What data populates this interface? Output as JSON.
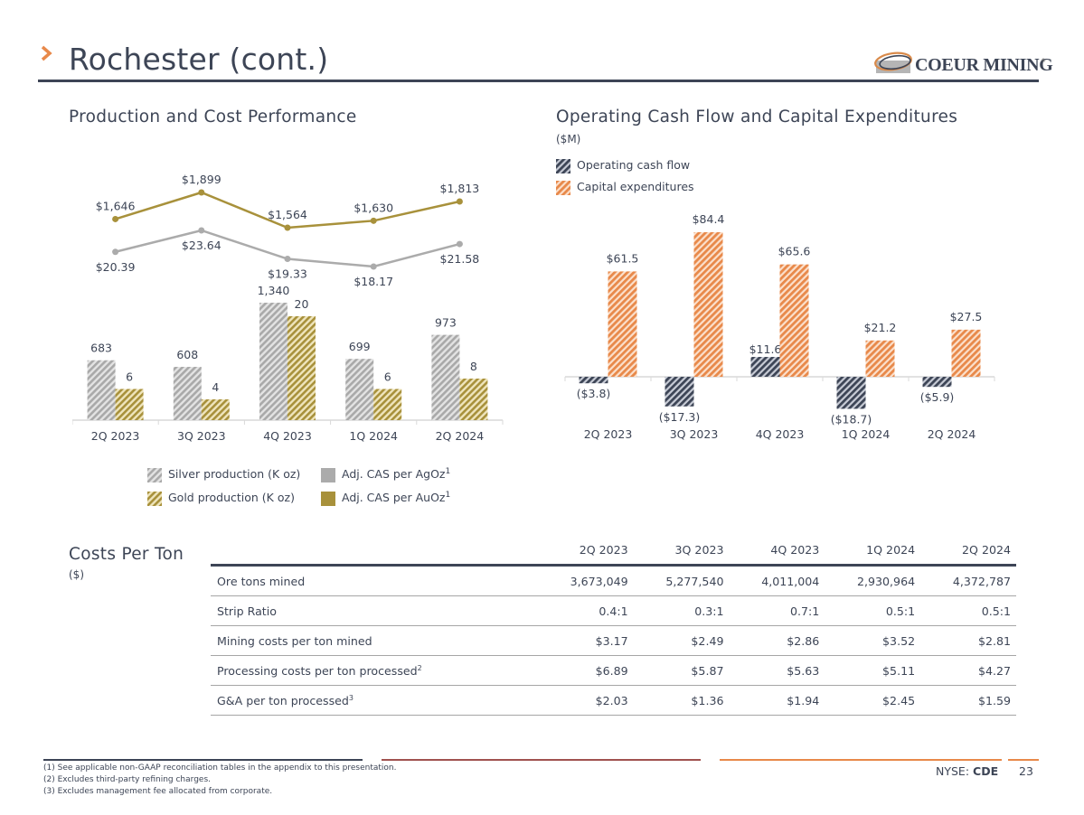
{
  "header": {
    "title": "Rochester (cont.)",
    "logo_text": "COEUR MINING",
    "logo_reg": "®"
  },
  "colors": {
    "navy": "#3d4556",
    "orange": "#e8894a",
    "gold": "#a8913b",
    "silver": "#ababab",
    "maroon": "#a0524f"
  },
  "production_section": {
    "title": "Production and Cost Performance",
    "legend": [
      {
        "label": "Silver production (K oz)",
        "sup": ""
      },
      {
        "label": "Gold production (K oz)",
        "sup": ""
      },
      {
        "label": "Adj. CAS per AgOz",
        "sup": "1"
      },
      {
        "label": "Adj. CAS per AuOz",
        "sup": "1"
      }
    ]
  },
  "cashflow_section": {
    "title": "Operating Cash Flow and Capital Expenditures",
    "subtitle": "($M)",
    "legend": [
      {
        "label": "Operating cash flow"
      },
      {
        "label": "Capital expenditures"
      }
    ]
  },
  "chart_data": [
    {
      "type": "bar",
      "title": "Production and Cost Performance",
      "categories": [
        "2Q 2023",
        "3Q 2023",
        "4Q 2023",
        "1Q 2024",
        "2Q 2024"
      ],
      "series": [
        {
          "name": "Silver production (K oz)",
          "kind": "bar",
          "values": [
            683,
            608,
            1340,
            699,
            973
          ],
          "labels": [
            "683",
            "608",
            "1,340",
            "699",
            "973"
          ]
        },
        {
          "name": "Gold production (K oz)",
          "kind": "bar",
          "values": [
            6,
            4,
            20,
            6,
            8
          ],
          "labels": [
            "6",
            "4",
            "20",
            "6",
            "8"
          ]
        },
        {
          "name": "Adj. CAS per AgOz",
          "kind": "line",
          "values": [
            20.39,
            23.64,
            19.33,
            18.17,
            21.58
          ],
          "labels": [
            "$20.39",
            "$23.64",
            "$19.33",
            "$18.17",
            "$21.58"
          ]
        },
        {
          "name": "Adj. CAS per AuOz",
          "kind": "line",
          "values": [
            1646,
            1899,
            1564,
            1630,
            1813
          ],
          "labels": [
            "$1,646",
            "$1,899",
            "$1,564",
            "$1,630",
            "$1,813"
          ]
        }
      ],
      "silver_ylim": [
        0,
        1500
      ],
      "gold_ylim": [
        0,
        23
      ],
      "legend_position": "bottom",
      "grid": false
    },
    {
      "type": "bar",
      "title": "Operating Cash Flow and Capital Expenditures",
      "subtitle": "($M)",
      "categories": [
        "2Q 2023",
        "3Q 2023",
        "4Q 2023",
        "1Q 2024",
        "2Q 2024"
      ],
      "series": [
        {
          "name": "Operating cash flow",
          "values": [
            -3.8,
            -17.3,
            11.6,
            -18.7,
            -5.9
          ],
          "labels": [
            "($3.8)",
            "($17.3)",
            "$11.6",
            "($18.7)",
            "($5.9)"
          ]
        },
        {
          "name": "Capital expenditures",
          "values": [
            61.5,
            84.4,
            65.6,
            21.2,
            27.5
          ],
          "labels": [
            "$61.5",
            "$84.4",
            "$65.6",
            "$21.2",
            "$27.5"
          ]
        }
      ],
      "ylim": [
        -20,
        90
      ],
      "legend_position": "top-left",
      "grid": false
    },
    {
      "type": "table",
      "title": "Costs Per Ton",
      "subtitle": "($)",
      "columns": [
        "2Q 2023",
        "3Q 2023",
        "4Q 2023",
        "1Q 2024",
        "2Q 2024"
      ],
      "rows": [
        {
          "label": "Ore tons mined",
          "sup": "",
          "values": [
            "3,673,049",
            "5,277,540",
            "4,011,004",
            "2,930,964",
            "4,372,787"
          ]
        },
        {
          "label": "Strip Ratio",
          "sup": "",
          "values": [
            "0.4:1",
            "0.3:1",
            "0.7:1",
            "0.5:1",
            "0.5:1"
          ]
        },
        {
          "label": "Mining costs per ton mined",
          "sup": "",
          "values": [
            "$3.17",
            "$2.49",
            "$2.86",
            "$3.52",
            "$2.81"
          ]
        },
        {
          "label": "Processing costs per ton processed",
          "sup": "2",
          "values": [
            "$6.89",
            "$5.87",
            "$5.63",
            "$5.11",
            "$4.27"
          ]
        },
        {
          "label": "G&A per ton processed",
          "sup": "3",
          "values": [
            "$2.03",
            "$1.36",
            "$1.94",
            "$2.45",
            "$1.59"
          ]
        }
      ]
    }
  ],
  "footnotes": [
    "(1) See applicable non-GAAP reconciliation tables in the appendix to this presentation.",
    "(2) Excludes third-party refining charges.",
    "(3) Excludes management fee allocated from corporate."
  ],
  "footer": {
    "exchange_prefix": "NYSE: ",
    "ticker": "CDE",
    "page_number": "23"
  }
}
